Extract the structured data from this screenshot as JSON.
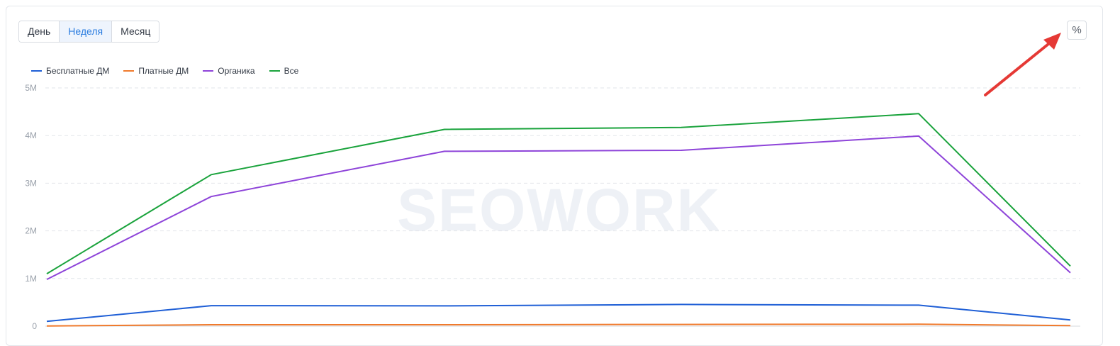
{
  "toolbar": {
    "periods": [
      "День",
      "Неделя",
      "Месяц"
    ],
    "active_period": "Неделя",
    "percent_label": "%"
  },
  "watermark": "SEOWORK",
  "colors": {
    "free": "#1f5fd6",
    "paid": "#f07a2c",
    "organic": "#8e44d9",
    "all": "#1aa33c",
    "arrow": "#e53935"
  },
  "chart_data": {
    "type": "line",
    "x": [
      1,
      2,
      3,
      4,
      5,
      6
    ],
    "ylim": [
      0,
      5000000
    ],
    "yticks": [
      0,
      1000000,
      2000000,
      3000000,
      4000000,
      5000000
    ],
    "ytick_labels": [
      "0",
      "1M",
      "2M",
      "3M",
      "4M",
      "5M"
    ],
    "grid": true,
    "legend_position": "top-left",
    "series": [
      {
        "name": "Бесплатные ДМ",
        "color": "#1f5fd6",
        "values": [
          100000,
          430000,
          425000,
          455000,
          440000,
          130000
        ]
      },
      {
        "name": "Платные ДМ",
        "color": "#f07a2c",
        "values": [
          5000,
          30000,
          30000,
          35000,
          40000,
          10000
        ]
      },
      {
        "name": "Органика",
        "color": "#8e44d9",
        "values": [
          980000,
          2720000,
          3670000,
          3690000,
          3990000,
          1120000
        ]
      },
      {
        "name": "Все",
        "color": "#1aa33c",
        "values": [
          1100000,
          3180000,
          4130000,
          4170000,
          4460000,
          1260000
        ]
      }
    ]
  }
}
